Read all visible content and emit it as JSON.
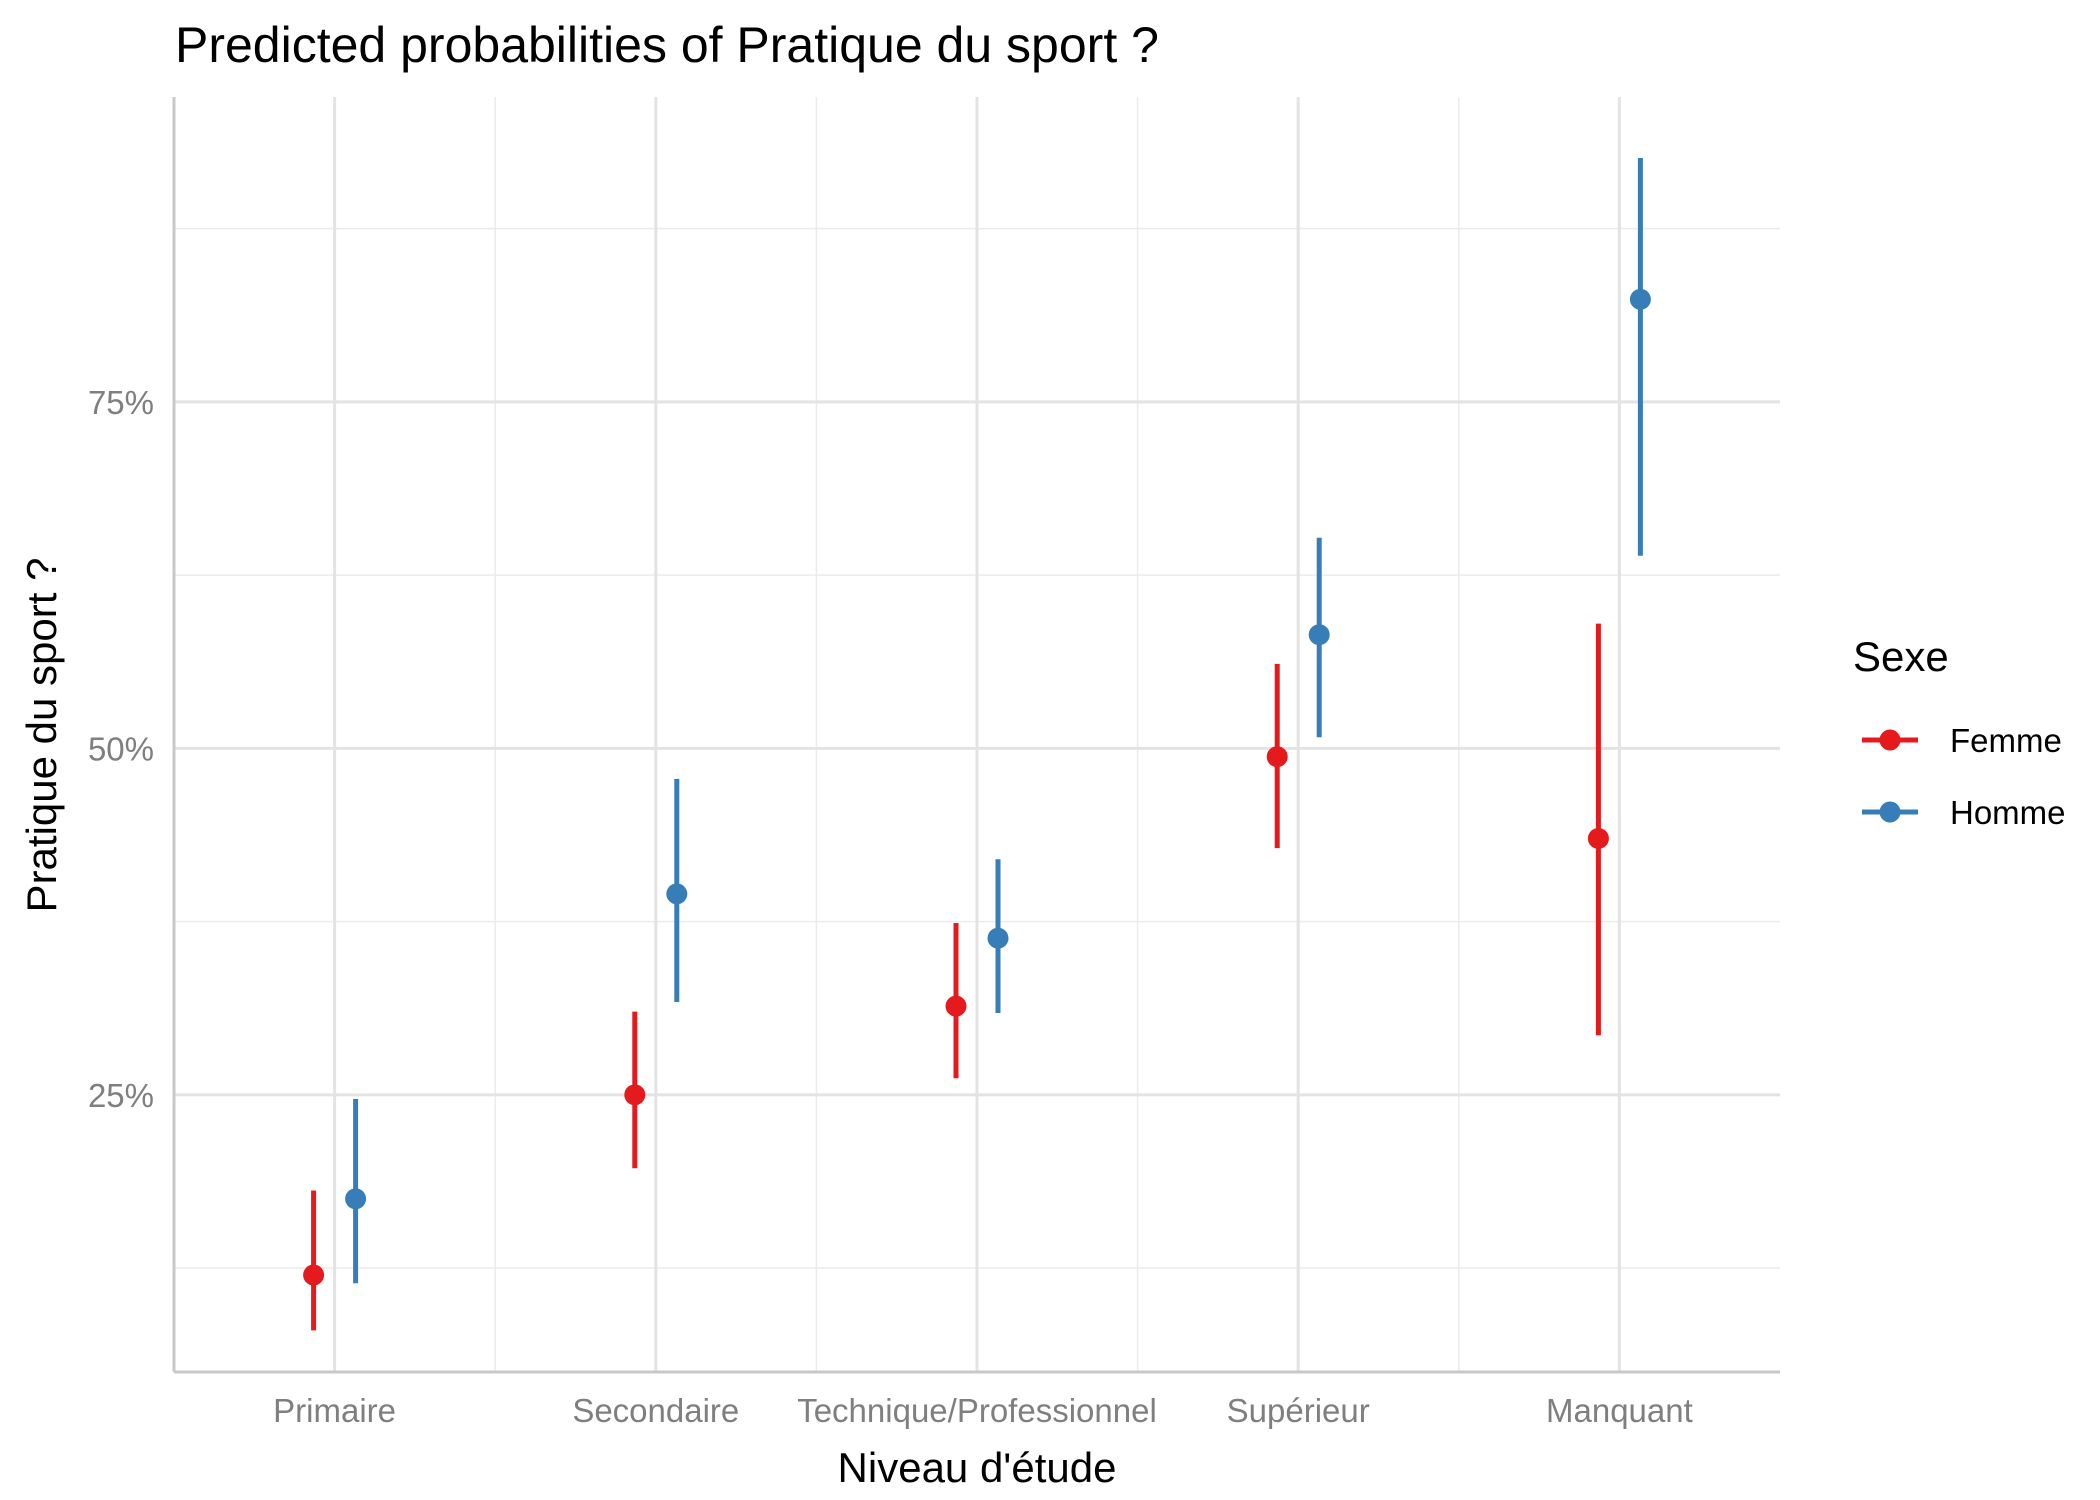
{
  "chart_data": {
    "type": "pointrange",
    "title": "Predicted probabilities of Pratique du sport ?",
    "xlabel": "Niveau d'étude",
    "ylabel": "Pratique du sport ?",
    "categories": [
      "Primaire",
      "Secondaire",
      "Technique/Professionnel",
      "Supérieur",
      "Manquant"
    ],
    "ylim": [
      0.05,
      0.97
    ],
    "yticks": [
      0.25,
      0.5,
      0.75
    ],
    "ytick_labels": [
      "25%",
      "50%",
      "75%"
    ],
    "grid": true,
    "legend": {
      "title": "Sexe",
      "position": "right"
    },
    "series": [
      {
        "name": "Femme",
        "color": "#e41a1c",
        "values": [
          0.12,
          0.25,
          0.314,
          0.494,
          0.435
        ],
        "lower": [
          0.08,
          0.197,
          0.262,
          0.428,
          0.293
        ],
        "upper": [
          0.181,
          0.31,
          0.374,
          0.561,
          0.59
        ]
      },
      {
        "name": "Homme",
        "color": "#377eb8",
        "values": [
          0.175,
          0.395,
          0.363,
          0.582,
          0.824
        ],
        "lower": [
          0.114,
          0.317,
          0.309,
          0.508,
          0.639
        ],
        "upper": [
          0.247,
          0.478,
          0.42,
          0.652,
          0.926
        ]
      }
    ]
  }
}
